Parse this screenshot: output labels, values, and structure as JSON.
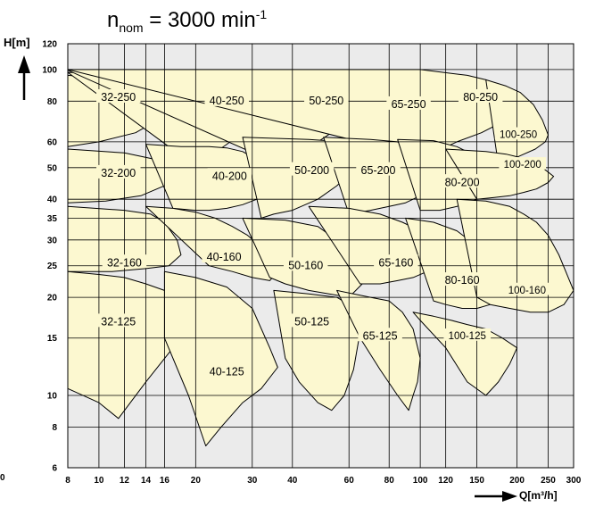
{
  "chart_data": {
    "type": "area",
    "title": {
      "prefix": "n",
      "sub": "nom",
      "main": " = 3000 min",
      "sup": "-1"
    },
    "xlabel": "Q[m³/h]",
    "ylabel": "H[m]",
    "corner_label": "0",
    "x_scale": "log",
    "y_scale": "log",
    "xlim": [
      8,
      300
    ],
    "ylim": [
      6,
      120
    ],
    "x_ticks": [
      8,
      10,
      12,
      14,
      16,
      20,
      30,
      40,
      60,
      80,
      100,
      120,
      150,
      200,
      250,
      300
    ],
    "y_ticks": [
      6,
      8,
      10,
      15,
      20,
      25,
      30,
      35,
      40,
      50,
      60,
      80,
      100,
      120
    ],
    "grid": true,
    "regions": [
      {
        "label": "32-250",
        "lx": 11.5,
        "ly": 82,
        "q": [
          8,
          12,
          15.8,
          17.2,
          18.5,
          16,
          13,
          10,
          8
        ],
        "h": [
          96,
          93,
          90,
          85,
          80,
          72,
          64,
          60,
          58
        ]
      },
      {
        "label": "40-250",
        "lx": 25,
        "ly": 80,
        "q": [
          8,
          16,
          18.2,
          20.5,
          25,
          30,
          34,
          36.5,
          33,
          29,
          25,
          22,
          19,
          16.5
        ],
        "h": [
          98,
          96,
          94,
          88,
          86,
          84.5,
          83,
          81,
          74,
          66,
          59,
          54,
          51,
          58
        ]
      },
      {
        "label": "50-250",
        "lx": 51,
        "ly": 80,
        "q": [
          8,
          40,
          55,
          65,
          70,
          72.5,
          68,
          58,
          48,
          40,
          35
        ],
        "h": [
          99.5,
          99,
          96,
          91,
          86,
          82,
          76,
          68,
          60,
          56,
          52
        ]
      },
      {
        "label": "65-250",
        "lx": 92,
        "ly": 78,
        "q": [
          60,
          85,
          100,
          108,
          112,
          115,
          108,
          95,
          83,
          72,
          65
        ],
        "h": [
          93,
          92,
          89,
          86,
          83,
          80,
          74,
          67,
          61,
          57,
          55
        ]
      },
      {
        "label": "80-250",
        "lx": 154,
        "ly": 82,
        "q": [
          8,
          100,
          140,
          160,
          175,
          188,
          200,
          193,
          180,
          155,
          130,
          112,
          100
        ],
        "h": [
          100,
          100,
          96,
          93,
          89,
          85,
          80,
          74,
          69,
          64,
          60,
          56,
          54
        ]
      },
      {
        "label": "100-250",
        "lx": 202,
        "ly": 63,
        "q": [
          160,
          185,
          205,
          225,
          240,
          250,
          245,
          228,
          210,
          193,
          175
        ],
        "h": [
          93,
          89,
          85,
          78,
          70,
          63,
          60,
          57,
          55,
          53,
          51
        ]
      },
      {
        "label": "32-200",
        "lx": 11.5,
        "ly": 48,
        "q": [
          8,
          12,
          15,
          17,
          16,
          13.5,
          10.5,
          8
        ],
        "h": [
          57,
          55.5,
          53,
          48,
          44,
          41,
          39.5,
          39
        ]
      },
      {
        "label": "40-200",
        "lx": 25.5,
        "ly": 47,
        "q": [
          14,
          18,
          22,
          25,
          28,
          32,
          36,
          34,
          31,
          28,
          25,
          22,
          20,
          17
        ],
        "h": [
          59,
          58,
          58,
          57.5,
          56,
          52,
          47,
          43,
          40,
          38.5,
          37.5,
          37,
          37,
          37.5
        ]
      },
      {
        "label": "50-200",
        "lx": 46,
        "ly": 49,
        "q": [
          28,
          45,
          58,
          62,
          66,
          62,
          55,
          48,
          40,
          35,
          32
        ],
        "h": [
          62,
          61,
          60,
          58,
          54,
          49,
          44,
          40,
          37,
          36,
          35
        ]
      },
      {
        "label": "65-200",
        "lx": 74,
        "ly": 49,
        "q": [
          50,
          70,
          85,
          92,
          100,
          106,
          110,
          100,
          90,
          80,
          70,
          60
        ],
        "h": [
          62,
          61,
          60,
          57,
          53,
          49,
          44,
          41,
          39,
          38,
          37,
          36
        ]
      },
      {
        "label": "80-200",
        "lx": 135,
        "ly": 45,
        "q": [
          85,
          110,
          130,
          145,
          160,
          175,
          180,
          165,
          150,
          130,
          115,
          100
        ],
        "h": [
          61,
          60.5,
          58,
          55,
          52,
          48,
          45,
          42,
          40,
          38,
          37,
          37
        ]
      },
      {
        "label": "100-200",
        "lx": 208,
        "ly": 51,
        "q": [
          120,
          160,
          185,
          200,
          220,
          240,
          260,
          250,
          230,
          210,
          190,
          170,
          150
        ],
        "h": [
          57,
          56,
          55,
          54,
          52,
          50,
          47,
          45,
          43,
          42,
          41,
          40.5,
          40
        ]
      },
      {
        "label": "32-160",
        "lx": 12,
        "ly": 25.5,
        "q": [
          8,
          12,
          14.5,
          16,
          17.5,
          18,
          16.5,
          14,
          11,
          8
        ],
        "h": [
          38,
          37,
          36,
          34,
          30,
          27,
          25,
          24.5,
          24,
          24
        ]
      },
      {
        "label": "40-160",
        "lx": 24.5,
        "ly": 26.5,
        "q": [
          14,
          17,
          20,
          23,
          26,
          29,
          32,
          36,
          34,
          30,
          26,
          22
        ],
        "h": [
          38,
          37.5,
          36.5,
          35,
          33,
          31,
          28.5,
          24,
          22.5,
          23,
          24,
          25
        ]
      },
      {
        "label": "50-160",
        "lx": 44,
        "ly": 25,
        "q": [
          28,
          38,
          48,
          55,
          60,
          64,
          66,
          60,
          52,
          45,
          38,
          34
        ],
        "h": [
          35,
          34.5,
          33,
          30,
          28,
          25,
          22,
          20,
          20.5,
          21,
          22,
          23
        ]
      },
      {
        "label": "65-160",
        "lx": 84,
        "ly": 25.5,
        "q": [
          45,
          60,
          75,
          88,
          100,
          110,
          115,
          105,
          95,
          85,
          75,
          65
        ],
        "h": [
          38,
          37.5,
          36,
          34,
          32,
          29,
          26,
          24,
          23,
          22.5,
          22,
          22
        ]
      },
      {
        "label": "80-160",
        "lx": 135,
        "ly": 22.5,
        "q": [
          90,
          110,
          130,
          145,
          160,
          172,
          176,
          165,
          150,
          135,
          120,
          110
        ],
        "h": [
          35,
          34,
          32,
          29.5,
          27,
          23,
          20,
          19,
          18.5,
          18.5,
          19,
          19.5
        ]
      },
      {
        "label": "100-160",
        "lx": 215,
        "ly": 21,
        "q": [
          130,
          160,
          190,
          210,
          230,
          250,
          270,
          300,
          280,
          250,
          220,
          190,
          165,
          150
        ],
        "h": [
          40,
          39.5,
          38,
          36,
          34,
          31,
          27,
          21,
          19,
          18,
          18,
          18.5,
          19,
          20
        ]
      },
      {
        "label": "32-125",
        "lx": 11.5,
        "ly": 16.8,
        "q": [
          8,
          10,
          12,
          14,
          16,
          18,
          20,
          17,
          14,
          11.5,
          10,
          8
        ],
        "h": [
          24,
          23.5,
          23,
          22,
          21,
          20,
          18.5,
          14,
          11,
          8.5,
          9.5,
          10.5
        ]
      },
      {
        "label": "40-125",
        "lx": 25,
        "ly": 11.8,
        "q": [
          16,
          20,
          25,
          30,
          34,
          36,
          32,
          28,
          24,
          21.5,
          19,
          16
        ],
        "h": [
          24,
          23,
          21.5,
          18.5,
          14,
          12.2,
          10.5,
          9.5,
          8,
          7,
          10,
          15
        ]
      },
      {
        "label": "50-125",
        "lx": 46,
        "ly": 16.8,
        "q": [
          35,
          45,
          55,
          60,
          63,
          64.5,
          62,
          58,
          53,
          48,
          42,
          38
        ],
        "h": [
          21,
          20.5,
          20,
          19,
          17,
          15,
          12,
          10,
          9,
          9.5,
          11,
          13
        ]
      },
      {
        "label": "65-125",
        "lx": 75,
        "ly": 15.2,
        "q": [
          55,
          70,
          80,
          88,
          95,
          100,
          98,
          95,
          92,
          85,
          75,
          65
        ],
        "h": [
          21,
          20,
          19.5,
          18,
          16,
          13,
          11,
          10,
          9,
          10,
          12,
          15
        ]
      },
      {
        "label": "100-125",
        "lx": 140,
        "ly": 15.2,
        "q": [
          95,
          110,
          125,
          140,
          160,
          180,
          200,
          190,
          175,
          160,
          140,
          120,
          100
        ],
        "h": [
          18,
          17.5,
          17,
          16.5,
          16,
          15,
          14,
          12.5,
          11,
          10,
          11,
          14,
          17
        ]
      }
    ]
  }
}
